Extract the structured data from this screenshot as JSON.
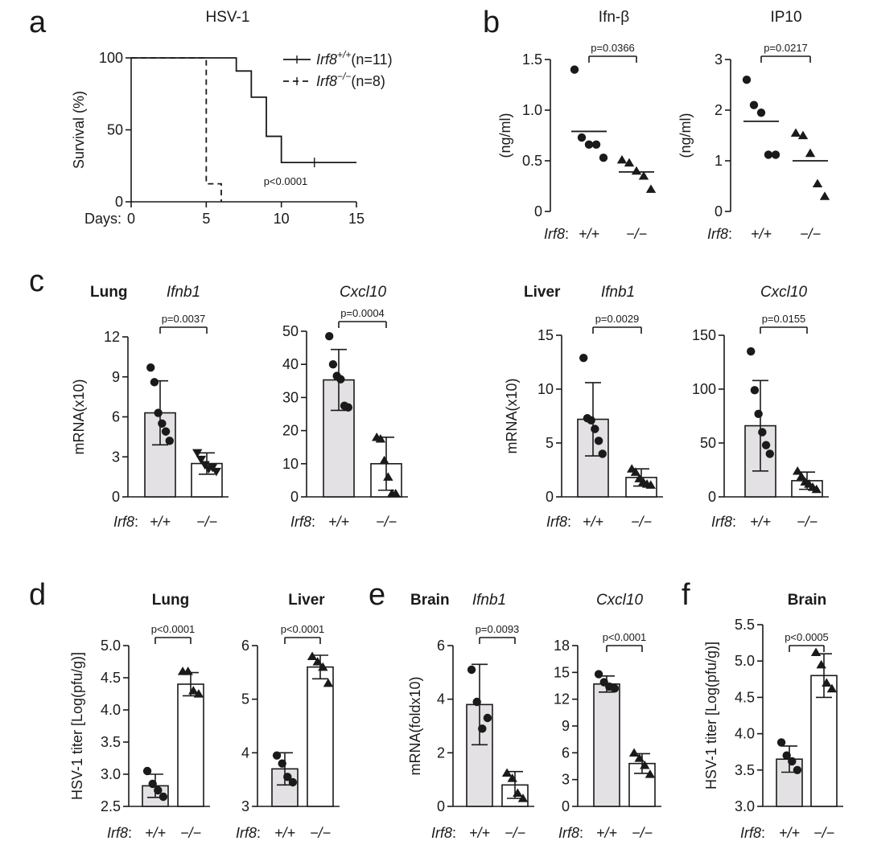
{
  "genotype_label": "Irf8",
  "genotype_suffix": ":",
  "groups": [
    "+/+",
    "−/−"
  ],
  "colors": {
    "wt_bar": "#e3e1e3",
    "ko_bar": "#ffffff",
    "ink": "#1a1a1a"
  },
  "chart_data": [
    {
      "id": "a",
      "letter": "a",
      "type": "line",
      "title": "HSV-1",
      "xlabel": "Days:",
      "ylabel": "Survival (%)",
      "xlim": [
        0,
        15
      ],
      "ylim": [
        0,
        100
      ],
      "xticks": [
        0,
        5,
        10,
        15
      ],
      "yticks": [
        0,
        50,
        100
      ],
      "annotation": "p<0.0001",
      "series": [
        {
          "name": "Irf8+/+(n=11)",
          "gene": "Irf8",
          "sup": "+/+",
          "rest": "(n=11)",
          "style": "solid",
          "x": [
            0,
            7,
            7,
            8,
            8,
            9,
            9,
            10,
            10,
            15
          ],
          "y": [
            100,
            100,
            90.9,
            90.9,
            72.7,
            72.7,
            45.5,
            45.5,
            27.3,
            27.3
          ]
        },
        {
          "name": "Irf8−/−(n=8)",
          "gene": "Irf8",
          "sup": "−/−",
          "rest": "(n=8)",
          "style": "dashed",
          "x": [
            0,
            5,
            5,
            6,
            6
          ],
          "y": [
            100,
            100,
            12.5,
            12.5,
            0
          ]
        }
      ]
    },
    {
      "id": "b1",
      "letter": "b",
      "type": "scatter",
      "title": "Ifn-β",
      "title_style": "plain",
      "ylabel": "(ng/ml)",
      "ylim": [
        0,
        1.5
      ],
      "yticks": [
        0,
        0.5,
        1.0,
        1.5
      ],
      "ytick_labels": [
        "0",
        "0.5",
        "1.0",
        "1.5"
      ],
      "pvalue": "p=0.0366",
      "wt": {
        "values": [
          1.4,
          0.73,
          0.66,
          0.66,
          0.53
        ],
        "mean": 0.79
      },
      "ko": {
        "values": [
          0.51,
          0.48,
          0.4,
          0.35,
          0.22
        ],
        "mean": 0.39
      }
    },
    {
      "id": "b2",
      "type": "scatter",
      "title": "IP10",
      "title_style": "plain",
      "ylabel": "(ng/ml)",
      "ylim": [
        0,
        3
      ],
      "yticks": [
        0,
        1,
        2,
        3
      ],
      "ytick_labels": [
        "0",
        "1",
        "2",
        "3"
      ],
      "pvalue": "p=0.0217",
      "wt": {
        "values": [
          2.6,
          2.1,
          1.95,
          1.12,
          1.12
        ],
        "mean": 1.78
      },
      "ko": {
        "values": [
          1.55,
          1.5,
          1.15,
          0.55,
          0.3
        ],
        "mean": 1.0
      }
    },
    {
      "id": "c1",
      "letter": "c",
      "type": "bar",
      "tissue": "Lung",
      "title": "Ifnb1",
      "title_style": "italic",
      "ylabel": "mRNA(x10)",
      "ylim": [
        0,
        12
      ],
      "yticks": [
        0,
        3,
        6,
        9,
        12
      ],
      "ytick_labels": [
        "0",
        "3",
        "6",
        "9",
        "12"
      ],
      "pvalue": "p=0.0037",
      "wt": {
        "mean": 6.3,
        "sd": 2.4,
        "values": [
          9.7,
          8.6,
          6.3,
          5.5,
          4.9,
          4.2
        ],
        "marker": "circle"
      },
      "ko": {
        "mean": 2.5,
        "sd": 0.8,
        "values": [
          3.3,
          2.8,
          2.4,
          2.1,
          2.2,
          1.9
        ],
        "marker": "triangle-down"
      }
    },
    {
      "id": "c2",
      "type": "bar",
      "title": "Cxcl10",
      "title_style": "italic",
      "ylabel": "",
      "ylim": [
        0,
        50
      ],
      "yticks": [
        0,
        10,
        20,
        30,
        40,
        50
      ],
      "ytick_labels": [
        "0",
        "10",
        "20",
        "30",
        "40",
        "50"
      ],
      "pvalue": "p=0.0004",
      "wt": {
        "mean": 35.3,
        "sd": 9.2,
        "values": [
          48.5,
          40.0,
          36.5,
          35.5,
          27.5,
          27.0
        ],
        "marker": "circle"
      },
      "ko": {
        "mean": 10.0,
        "sd": 8.0,
        "values": [
          18.0,
          17.5,
          11.0,
          6.0,
          1.0,
          1.0
        ],
        "marker": "triangle"
      }
    },
    {
      "id": "c3",
      "type": "bar",
      "tissue": "Liver",
      "title": "Ifnb1",
      "title_style": "italic",
      "ylabel": "mRNA(x10)",
      "ylim": [
        0,
        15
      ],
      "yticks": [
        0,
        5,
        10,
        15
      ],
      "ytick_labels": [
        "0",
        "5",
        "10",
        "15"
      ],
      "pvalue": "p=0.0029",
      "wt": {
        "mean": 7.2,
        "sd": 3.4,
        "values": [
          12.9,
          7.3,
          7.1,
          6.3,
          5.2,
          4.0
        ],
        "marker": "circle"
      },
      "ko": {
        "mean": 1.8,
        "sd": 0.8,
        "values": [
          2.6,
          2.3,
          1.7,
          1.4,
          1.2,
          1.1
        ],
        "marker": "triangle"
      }
    },
    {
      "id": "c4",
      "type": "bar",
      "title": "Cxcl10",
      "title_style": "italic",
      "ylabel": "",
      "ylim": [
        0,
        150
      ],
      "yticks": [
        0,
        50,
        100,
        150
      ],
      "ytick_labels": [
        "0",
        "50",
        "100",
        "150"
      ],
      "pvalue": "p=0.0155",
      "wt": {
        "mean": 66,
        "sd": 42,
        "values": [
          135,
          99,
          77,
          60,
          48,
          40
        ],
        "marker": "circle"
      },
      "ko": {
        "mean": 15,
        "sd": 8,
        "values": [
          24,
          19,
          14,
          12,
          9,
          7
        ],
        "marker": "triangle"
      }
    },
    {
      "id": "d1",
      "letter": "d",
      "type": "bar",
      "title": "Lung",
      "title_style": "bold",
      "ylabel": "HSV-1 titer [Log(pfu/g)]",
      "ylim": [
        2.5,
        5.0
      ],
      "yticks": [
        2.5,
        3.0,
        3.5,
        4.0,
        4.5,
        5.0
      ],
      "ytick_labels": [
        "2.5",
        "3.0",
        "3.5",
        "4.0",
        "4.5",
        "5.0"
      ],
      "pvalue": "p<0.0001",
      "wt": {
        "mean": 2.82,
        "sd": 0.18,
        "values": [
          3.05,
          2.85,
          2.75,
          2.65
        ],
        "marker": "circle"
      },
      "ko": {
        "mean": 4.4,
        "sd": 0.18,
        "values": [
          4.6,
          4.6,
          4.3,
          4.25
        ],
        "marker": "triangle"
      }
    },
    {
      "id": "d2",
      "type": "bar",
      "title": "Liver",
      "title_style": "bold",
      "ylabel": "",
      "ylim": [
        3,
        6
      ],
      "yticks": [
        3,
        4,
        5,
        6
      ],
      "ytick_labels": [
        "3",
        "4",
        "5",
        "6"
      ],
      "pvalue": "p<0.0001",
      "wt": {
        "mean": 3.7,
        "sd": 0.3,
        "values": [
          3.95,
          3.8,
          3.55,
          3.45
        ],
        "marker": "circle"
      },
      "ko": {
        "mean": 5.6,
        "sd": 0.22,
        "values": [
          5.8,
          5.7,
          5.6,
          5.3
        ],
        "marker": "triangle"
      }
    },
    {
      "id": "e1",
      "letter": "e",
      "type": "bar",
      "tissue": "Brain",
      "title": "Ifnb1",
      "title_style": "italic",
      "ylabel": "mRNA(foldx10)",
      "ylim": [
        0,
        6
      ],
      "yticks": [
        0,
        2,
        4,
        6
      ],
      "ytick_labels": [
        "0",
        "2",
        "4",
        "6"
      ],
      "pvalue": "p=0.0093",
      "wt": {
        "mean": 3.8,
        "sd": 1.5,
        "values": [
          5.1,
          3.9,
          2.9,
          3.3
        ],
        "marker": "circle"
      },
      "ko": {
        "mean": 0.8,
        "sd": 0.5,
        "values": [
          1.25,
          1.05,
          0.5,
          0.3
        ],
        "marker": "triangle"
      }
    },
    {
      "id": "e2",
      "type": "bar",
      "title": "Cxcl10",
      "title_style": "italic",
      "ylabel": "",
      "ylim": [
        0,
        18
      ],
      "yticks": [
        0,
        3,
        6,
        9,
        12,
        15,
        18
      ],
      "ytick_labels": [
        "0",
        "3",
        "6",
        "9",
        "12",
        "15",
        "18"
      ],
      "pvalue": "p<0.0001",
      "wt": {
        "mean": 13.7,
        "sd": 0.9,
        "values": [
          14.8,
          13.9,
          13.4,
          13.2
        ],
        "marker": "circle"
      },
      "ko": {
        "mean": 4.8,
        "sd": 1.1,
        "values": [
          6.0,
          5.4,
          4.6,
          3.6
        ],
        "marker": "triangle"
      }
    },
    {
      "id": "f1",
      "letter": "f",
      "type": "bar",
      "title": "Brain",
      "title_style": "bold",
      "ylabel": "HSV-1 titer [Log(pfu/g)]",
      "ylim": [
        3.0,
        5.5
      ],
      "yticks": [
        3.0,
        3.5,
        4.0,
        4.5,
        5.0,
        5.5
      ],
      "ytick_labels": [
        "3.0",
        "3.5",
        "4.0",
        "4.5",
        "5.0",
        "5.5"
      ],
      "pvalue": "p<0.0005",
      "wt": {
        "mean": 3.65,
        "sd": 0.18,
        "values": [
          3.88,
          3.7,
          3.62,
          3.5
        ],
        "marker": "circle"
      },
      "ko": {
        "mean": 4.8,
        "sd": 0.3,
        "values": [
          5.12,
          4.95,
          4.7,
          4.62
        ],
        "marker": "triangle"
      }
    }
  ]
}
